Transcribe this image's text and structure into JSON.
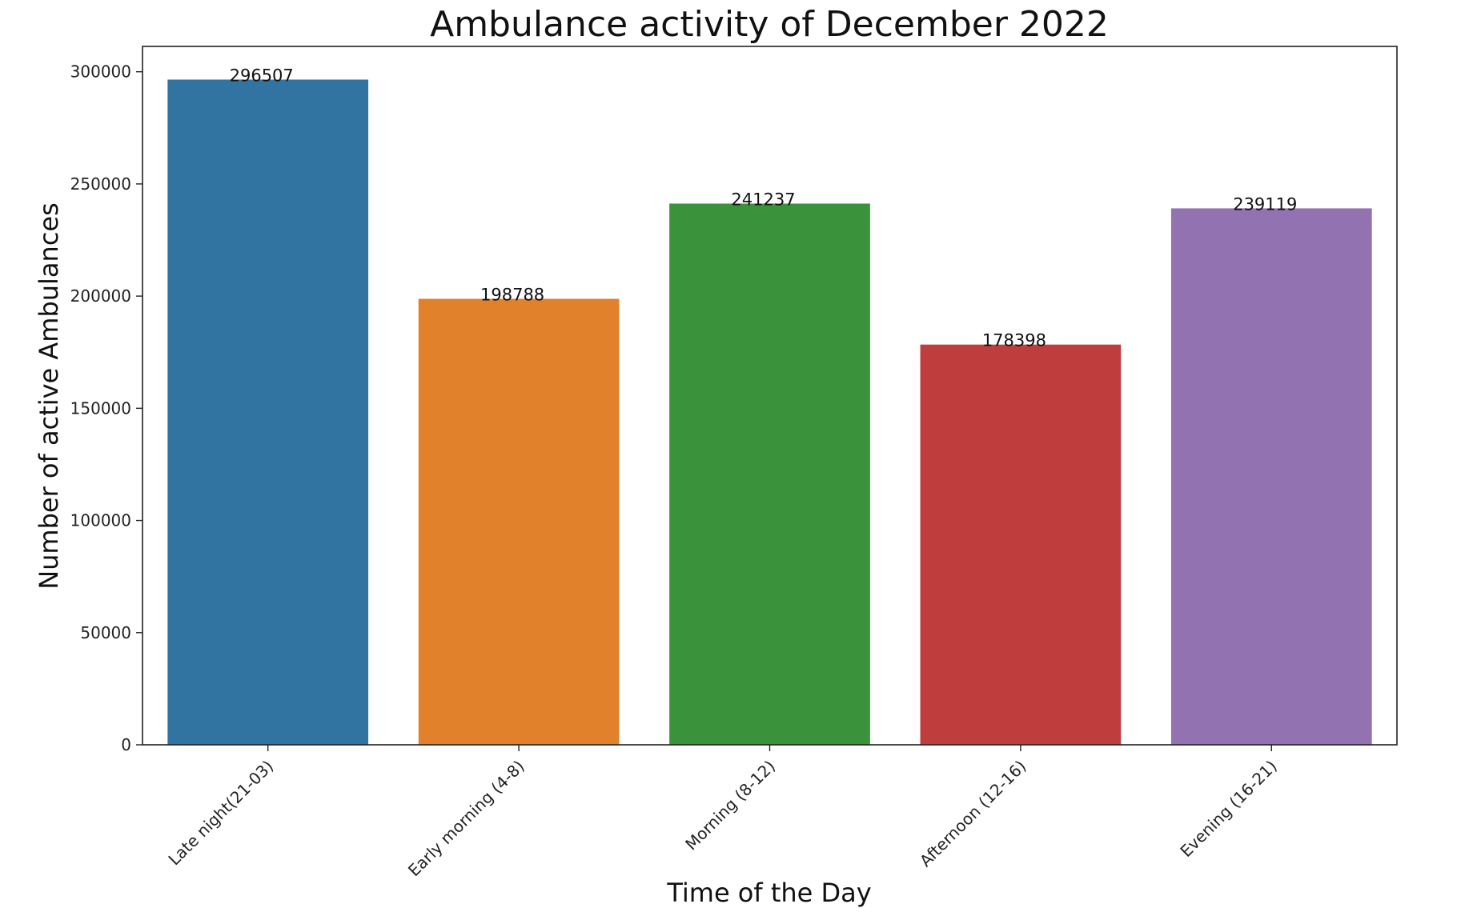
{
  "chart_data": {
    "type": "bar",
    "title": "Ambulance activity of December 2022",
    "xlabel": "Time of the Day",
    "ylabel": "Number of active Ambulances",
    "categories": [
      "Late night(21-03)",
      "Early morning (4-8)",
      "Morning (8-12)",
      "Afternoon (12-16)",
      "Evening (16-21)"
    ],
    "values": [
      296507,
      198788,
      241237,
      178398,
      239119
    ],
    "colors": [
      "#3274a1",
      "#e1812c",
      "#3a923a",
      "#c03d3e",
      "#9372b2"
    ],
    "ylim": [
      0,
      311300
    ],
    "yticks": [
      0,
      50000,
      100000,
      150000,
      200000,
      250000,
      300000
    ],
    "grid": false,
    "legend": "none"
  }
}
